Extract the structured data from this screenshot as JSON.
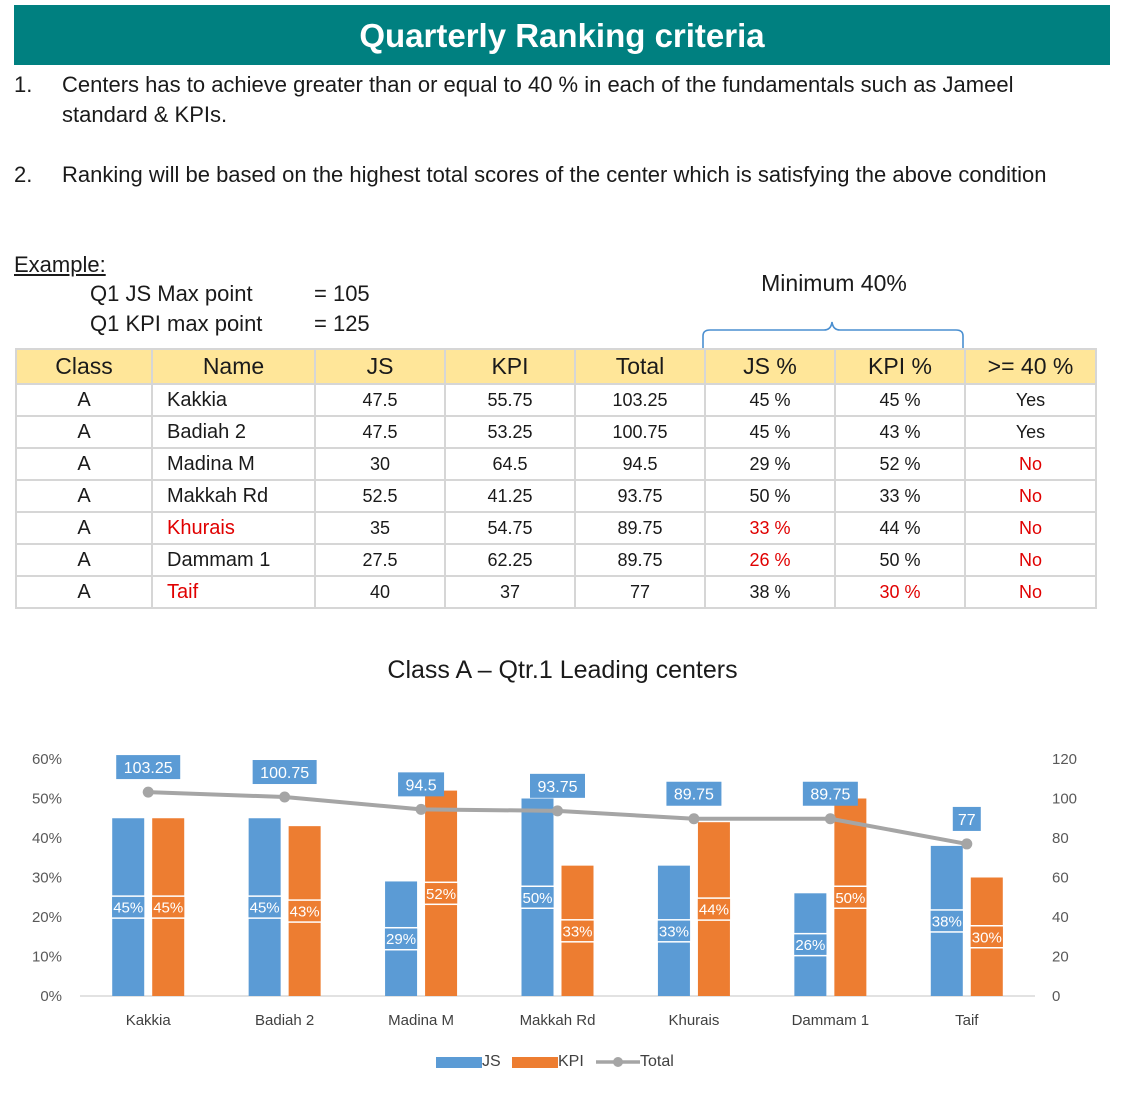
{
  "banner": {
    "title": "Quarterly Ranking criteria",
    "color": "#008080"
  },
  "rules": [
    {
      "num": "1.",
      "text": "Centers has to achieve greater than or equal to 40 %  in each of the fundamentals such as Jameel standard & KPIs."
    },
    {
      "num": "2.",
      "text": "Ranking will be based on the highest total scores of the center which is satisfying the above condition"
    }
  ],
  "example": {
    "label": "Example:",
    "lines": [
      {
        "key": "Q1 JS Max point",
        "value": "= 105"
      },
      {
        "key": "Q1 KPI max point",
        "value": "= 125"
      }
    ],
    "minimum_label": "Minimum 40%"
  },
  "table": {
    "header_color": "#ffe699",
    "headers": [
      "Class",
      "Name",
      "JS",
      "KPI",
      "Total",
      "JS %",
      "KPI %",
      ">= 40 %"
    ],
    "rows": [
      {
        "cls": "A",
        "name": "Kakkia",
        "js": "47.5",
        "kpi": "55.75",
        "total": "103.25",
        "jsp": "45 %",
        "kpip": "45 %",
        "pass": "Yes",
        "name_red": false,
        "jsp_red": false,
        "kpip_red": false,
        "pass_red": false
      },
      {
        "cls": "A",
        "name": "Badiah 2",
        "js": "47.5",
        "kpi": "53.25",
        "total": "100.75",
        "jsp": "45 %",
        "kpip": "43 %",
        "pass": "Yes",
        "name_red": false,
        "jsp_red": false,
        "kpip_red": false,
        "pass_red": false
      },
      {
        "cls": "A",
        "name": "Madina M",
        "js": "30",
        "kpi": "64.5",
        "total": "94.5",
        "jsp": "29 %",
        "kpip": "52 %",
        "pass": "No",
        "name_red": false,
        "jsp_red": false,
        "kpip_red": false,
        "pass_red": true
      },
      {
        "cls": "A",
        "name": "Makkah Rd",
        "js": "52.5",
        "kpi": "41.25",
        "total": "93.75",
        "jsp": "50 %",
        "kpip": "33 %",
        "pass": "No",
        "name_red": false,
        "jsp_red": false,
        "kpip_red": false,
        "pass_red": true
      },
      {
        "cls": "A",
        "name": "Khurais",
        "js": "35",
        "kpi": "54.75",
        "total": "89.75",
        "jsp": "33 %",
        "kpip": "44 %",
        "pass": "No",
        "name_red": true,
        "jsp_red": true,
        "kpip_red": false,
        "pass_red": true
      },
      {
        "cls": "A",
        "name": "Dammam 1",
        "js": "27.5",
        "kpi": "62.25",
        "total": "89.75",
        "jsp": "26 %",
        "kpip": "50 %",
        "pass": "No",
        "name_red": false,
        "jsp_red": true,
        "kpip_red": false,
        "pass_red": true
      },
      {
        "cls": "A",
        "name": "Taif",
        "js": "40",
        "kpi": "37",
        "total": "77",
        "jsp": "38 %",
        "kpip": "30 %",
        "pass": "No",
        "name_red": true,
        "jsp_red": false,
        "kpip_red": true,
        "pass_red": true
      }
    ]
  },
  "chart_data": {
    "type": "bar",
    "title": "Class A – Qtr.1 Leading centers",
    "categories": [
      "Kakkia",
      "Badiah 2",
      "Madina M",
      "Makkah Rd",
      "Khurais",
      "Dammam 1",
      "Taif"
    ],
    "series": [
      {
        "name": "JS",
        "type": "bar",
        "axis": "left",
        "color": "#5b9bd5",
        "values": [
          45,
          45,
          29,
          50,
          33,
          26,
          38
        ],
        "labels": [
          "45%",
          "45%",
          "29%",
          "50%",
          "33%",
          "26%",
          "38%"
        ]
      },
      {
        "name": "KPI",
        "type": "bar",
        "axis": "left",
        "color": "#ed7d31",
        "values": [
          45,
          43,
          52,
          33,
          44,
          50,
          30
        ],
        "labels": [
          "45%",
          "43%",
          "52%",
          "33%",
          "44%",
          "50%",
          "30%"
        ]
      },
      {
        "name": "Total",
        "type": "line",
        "axis": "right",
        "color": "#a5a5a5",
        "values": [
          103.25,
          100.75,
          94.5,
          93.75,
          89.75,
          89.75,
          77
        ],
        "labels": [
          "103.25",
          "100.75",
          "94.5",
          "93.75",
          "89.75",
          "89.75",
          "77"
        ]
      }
    ],
    "ylim": [
      0,
      60
    ],
    "y2lim": [
      0,
      120
    ],
    "yticks": [
      "0%",
      "10%",
      "20%",
      "30%",
      "40%",
      "50%",
      "60%"
    ],
    "y2ticks": [
      "0",
      "20",
      "40",
      "60",
      "80",
      "100",
      "120"
    ],
    "grid": false,
    "legend": "bottom-center"
  }
}
